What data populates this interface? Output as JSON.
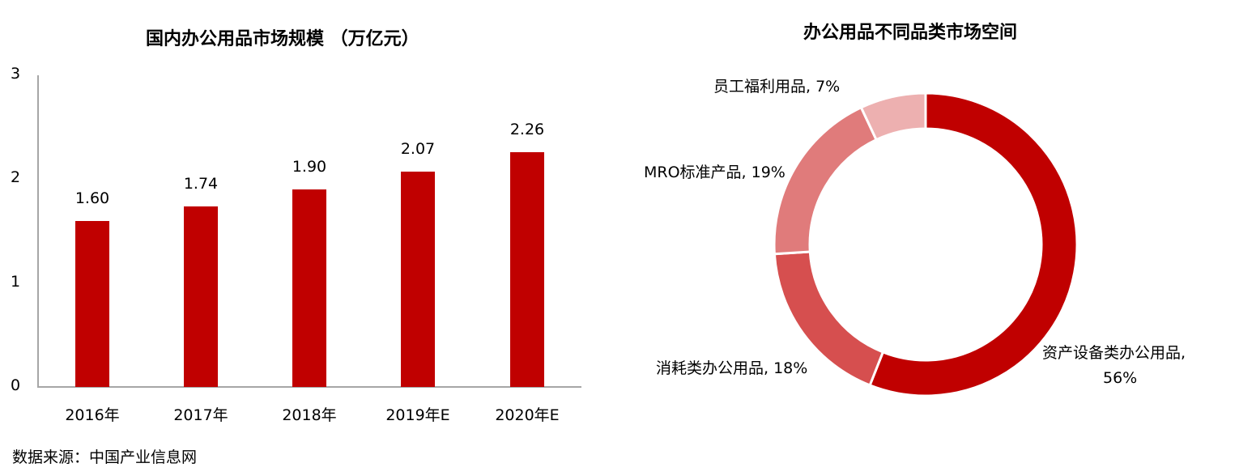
{
  "chart_data": [
    {
      "type": "bar",
      "title": "国内办公用品市场规模 （万亿元）",
      "categories": [
        "2016年",
        "2017年",
        "2018年",
        "2019年E",
        "2020年E"
      ],
      "values": [
        1.6,
        1.74,
        1.9,
        2.07,
        2.26
      ],
      "value_labels": [
        "1.60",
        "1.74",
        "1.90",
        "2.07",
        "2.26"
      ],
      "xlabel": "",
      "ylabel": "",
      "ylim": [
        0,
        3
      ],
      "yticks": [
        "0",
        "1",
        "2",
        "3"
      ],
      "grid": false,
      "legend": null,
      "colors": [
        "#C00000"
      ]
    },
    {
      "type": "pie",
      "subtype": "donut",
      "title": "办公用品不同品类市场空间",
      "categories": [
        "资产设备类办公用品",
        "消耗类办公用品",
        "MRO标准产品",
        "员工福利用品"
      ],
      "values": [
        56,
        18,
        19,
        7
      ],
      "unit": "%",
      "labels": [
        "资产设备类办公用品, 56%",
        "消耗类办公用品, 18%",
        "MRO标准产品, 19%",
        "员工福利用品, 7%"
      ],
      "colors": [
        "#C00000",
        "#D64F4F",
        "#E07B7B",
        "#EDB0B0"
      ],
      "legend": null
    }
  ],
  "bar_chart": {
    "title": "国内办公用品市场规模 （万亿元）",
    "yticks": [
      "3",
      "2",
      "1",
      "0"
    ],
    "bars": [
      {
        "category": "2016年",
        "value": 1.6,
        "label": "1.60"
      },
      {
        "category": "2017年",
        "value": 1.74,
        "label": "1.74"
      },
      {
        "category": "2018年",
        "value": 1.9,
        "label": "1.90"
      },
      {
        "category": "2019年E",
        "value": 2.07,
        "label": "2.07"
      },
      {
        "category": "2020年E",
        "value": 2.26,
        "label": "2.26"
      }
    ],
    "bar_color": "#C00000"
  },
  "donut_chart": {
    "title": "办公用品不同品类市场空间",
    "labels": {
      "welfare": "员工福利用品, 7%",
      "mro": "MRO标准产品, 19%",
      "consumable": "消耗类办公用品, 18%",
      "asset_line1": "资产设备类办公用品,",
      "asset_line2": "56%"
    }
  },
  "source": "数据来源：中国产业信息网"
}
